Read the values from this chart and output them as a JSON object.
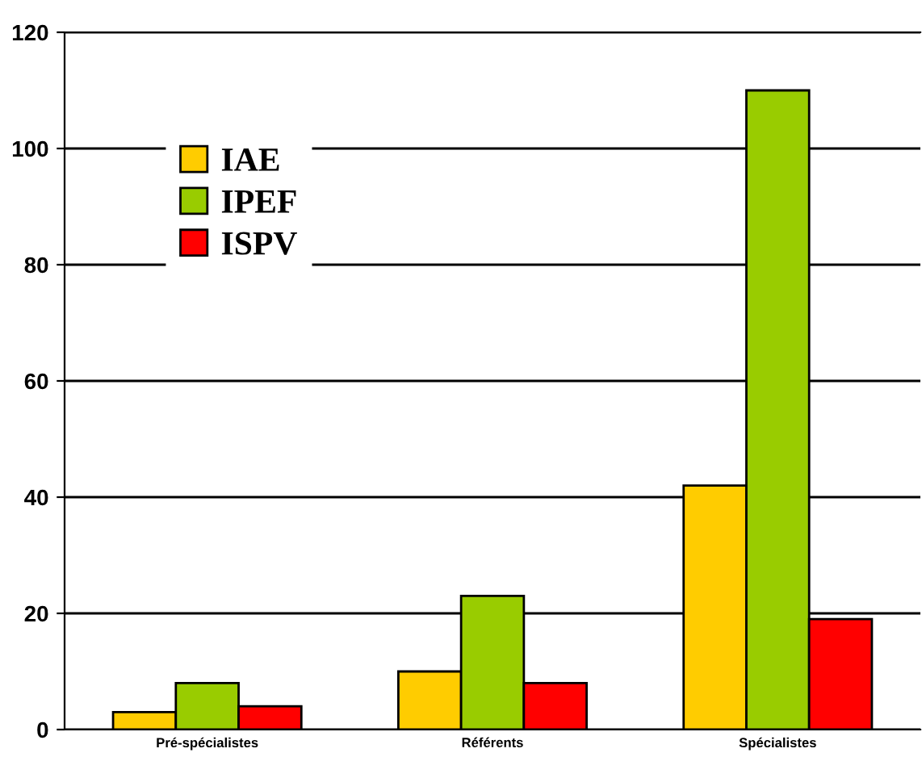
{
  "chart_data": {
    "type": "bar",
    "categories": [
      "Pré-spécialistes",
      "Référents",
      "Spécialistes"
    ],
    "series": [
      {
        "name": "IAE",
        "color": "#ffcc00",
        "values": [
          3,
          10,
          42
        ]
      },
      {
        "name": "IPEF",
        "color": "#99cc00",
        "values": [
          8,
          23,
          110
        ]
      },
      {
        "name": "ISPV",
        "color": "#ff0000",
        "values": [
          4,
          8,
          19
        ]
      }
    ],
    "ylim": [
      0,
      120
    ],
    "yticks": [
      0,
      20,
      40,
      60,
      80,
      100,
      120
    ],
    "grid": "y",
    "legend": "top left"
  }
}
